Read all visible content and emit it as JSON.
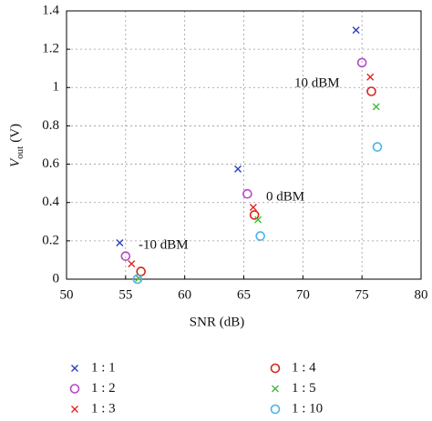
{
  "chart_data": {
    "type": "scatter",
    "xlabel": "SNR (dB)",
    "ylabel": {
      "main": "V",
      "sub": "out",
      "unit": "(V)"
    },
    "xlim": [
      50,
      80
    ],
    "xticks": [
      50,
      55,
      60,
      65,
      70,
      75,
      80
    ],
    "ylim": [
      0,
      1.4
    ],
    "yticks": [
      0,
      0.2,
      0.4,
      0.6,
      0.8,
      1,
      1.2,
      1.4
    ],
    "grid": true,
    "annotations": [
      "-10 dBM",
      "0 dBM",
      "10 dBM"
    ],
    "series": [
      {
        "name": "1 : 1",
        "marker": "x",
        "color": "#2a3fc4",
        "x": [
          54.5,
          64.5,
          74.5
        ],
        "values": [
          0.19,
          0.575,
          1.3
        ]
      },
      {
        "name": "1 : 2",
        "marker": "o",
        "color": "#b44ac8",
        "x": [
          55,
          65.3,
          75
        ],
        "values": [
          0.12,
          0.445,
          1.13
        ]
      },
      {
        "name": "1 : 3",
        "marker": "x",
        "color": "#e02424",
        "x": [
          55.5,
          65.8,
          75.7
        ],
        "values": [
          0.08,
          0.375,
          1.055
        ]
      },
      {
        "name": "1 : 4",
        "marker": "o",
        "color": "#d8261a",
        "x": [
          56.3,
          65.9,
          75.8
        ],
        "values": [
          0.04,
          0.335,
          0.98
        ]
      },
      {
        "name": "1 : 5",
        "marker": "x",
        "color": "#44b83a",
        "x": [
          56.1,
          66.2,
          76.2
        ],
        "values": [
          0.005,
          0.31,
          0.9
        ]
      },
      {
        "name": "1 : 10",
        "marker": "o",
        "color": "#4ab4e6",
        "x": [
          56,
          66.4,
          76.3
        ],
        "values": [
          0,
          0.225,
          0.69
        ]
      }
    ]
  }
}
